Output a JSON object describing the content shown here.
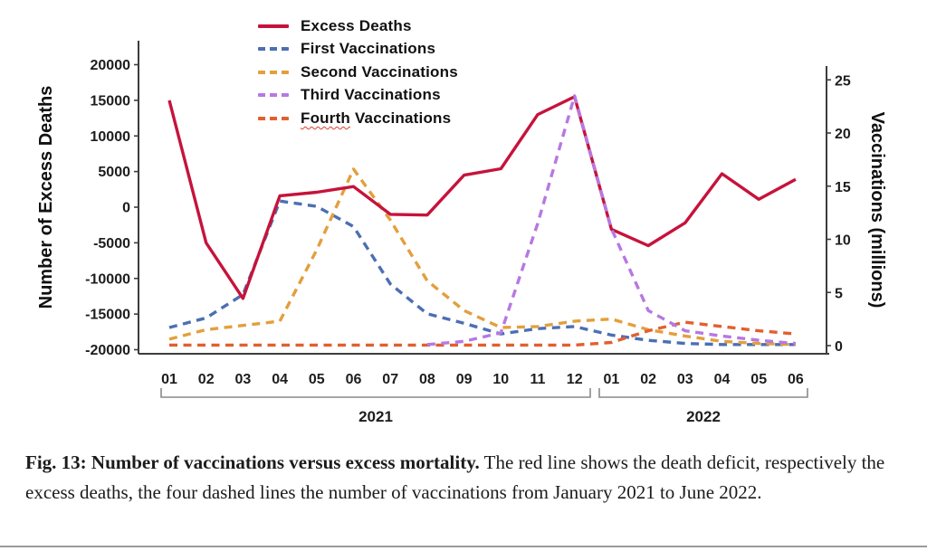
{
  "figure": {
    "caption_bold": "Fig. 13: Number of vaccinations versus excess mortality.",
    "caption_rest": " The red line shows the death deficit, respectively the excess deaths, the four dashed lines the number of vaccinations from January 2021 to June 2022."
  },
  "chart_data": {
    "type": "line",
    "title": "",
    "x_axis": {
      "years": [
        {
          "label": "2021",
          "months": [
            "01",
            "02",
            "03",
            "04",
            "05",
            "06",
            "07",
            "08",
            "09",
            "10",
            "11",
            "12"
          ]
        },
        {
          "label": "2022",
          "months": [
            "01",
            "02",
            "03",
            "04",
            "05",
            "06"
          ]
        }
      ]
    },
    "left_axis": {
      "label": "Number of Excess Deaths",
      "ticks": [
        20000,
        15000,
        10000,
        5000,
        0,
        -5000,
        -10000,
        -15000,
        -20000
      ],
      "range": [
        -20000,
        20000
      ]
    },
    "right_axis": {
      "label": "Vaccinations (millions)",
      "ticks": [
        25,
        20,
        15,
        10,
        5,
        0
      ],
      "range": [
        0,
        25
      ]
    },
    "series": [
      {
        "name": "Excess Deaths",
        "axis": "left",
        "color": "#C6133B",
        "style": "solid",
        "values": [
          15000,
          -5000,
          -12800,
          1600,
          2100,
          2900,
          -1000,
          -1100,
          4500,
          5400,
          13000,
          15500,
          -3100,
          -5400,
          -2200,
          4700,
          1100,
          3900
        ]
      },
      {
        "name": "First Vaccinations",
        "axis": "right",
        "color": "#4C6FB2",
        "style": "dashed",
        "values": [
          1.7,
          2.6,
          4.8,
          13.6,
          13.1,
          11.2,
          5.8,
          3.0,
          2.1,
          1.1,
          1.6,
          1.8,
          1.0,
          0.5,
          0.2,
          0.1,
          0.1,
          0.1
        ]
      },
      {
        "name": "Second Vaccinations",
        "axis": "right",
        "color": "#E39F3D",
        "style": "dashed",
        "values": [
          0.6,
          1.5,
          1.9,
          2.3,
          9.0,
          16.6,
          11.8,
          6.1,
          3.3,
          1.7,
          1.8,
          2.3,
          2.5,
          1.5,
          0.9,
          0.4,
          0.2,
          0.1
        ]
      },
      {
        "name": "Third Vaccinations",
        "axis": "right",
        "color": "#B678E3",
        "style": "dashed",
        "values": [
          null,
          null,
          null,
          null,
          null,
          null,
          null,
          0.1,
          0.4,
          1.2,
          11.5,
          23.5,
          11.0,
          3.3,
          1.4,
          0.9,
          0.5,
          0.2
        ]
      },
      {
        "name": "Fourth Vaccinations",
        "axis": "right",
        "color": "#E0602F",
        "style": "dashed",
        "word_flagged": "Fourth",
        "word_rest": " Vaccinations",
        "values": [
          0.05,
          0.05,
          0.05,
          0.05,
          0.05,
          0.05,
          0.05,
          0.05,
          0.05,
          0.05,
          0.05,
          0.05,
          0.3,
          1.4,
          2.2,
          1.8,
          1.4,
          1.1
        ]
      }
    ],
    "legend_position": "top-left",
    "grid": false
  }
}
